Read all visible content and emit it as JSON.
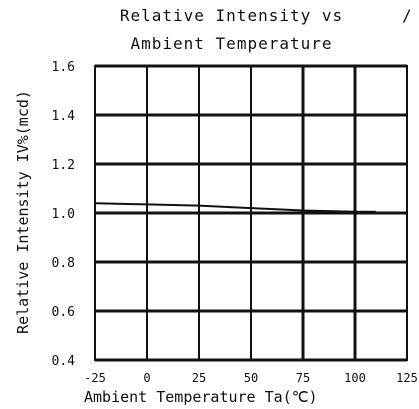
{
  "chart_data": {
    "type": "line",
    "title_lines": [
      "Relative Intensity vs",
      "Ambient Temperature"
    ],
    "xlabel": "Ambient Temperature Ta(℃)",
    "ylabel": "Relative Intensity IV%(mcd)",
    "xlim": [
      -25,
      125
    ],
    "ylim": [
      0.4,
      1.6
    ],
    "x_ticks": [
      -25,
      0,
      25,
      50,
      75,
      100,
      125
    ],
    "x_tick_labels": [
      "-25",
      "0",
      "25",
      "50",
      "75",
      "100",
      "125"
    ],
    "y_ticks": [
      0.4,
      0.6,
      0.8,
      1.0,
      1.2,
      1.4,
      1.6
    ],
    "y_tick_labels": [
      "0.4",
      "0.6",
      "0.8",
      "1.0",
      "1.2",
      "1.4",
      "1.6"
    ],
    "grid": true,
    "series": [
      {
        "x": [
          -25,
          0,
          25,
          50,
          75,
          100,
          110
        ],
        "y": [
          1.04,
          1.035,
          1.03,
          1.02,
          1.01,
          1.005,
          1.005
        ]
      }
    ],
    "colors": {
      "line": "#111111",
      "grid": "#111111",
      "background": "#ffffff"
    }
  }
}
